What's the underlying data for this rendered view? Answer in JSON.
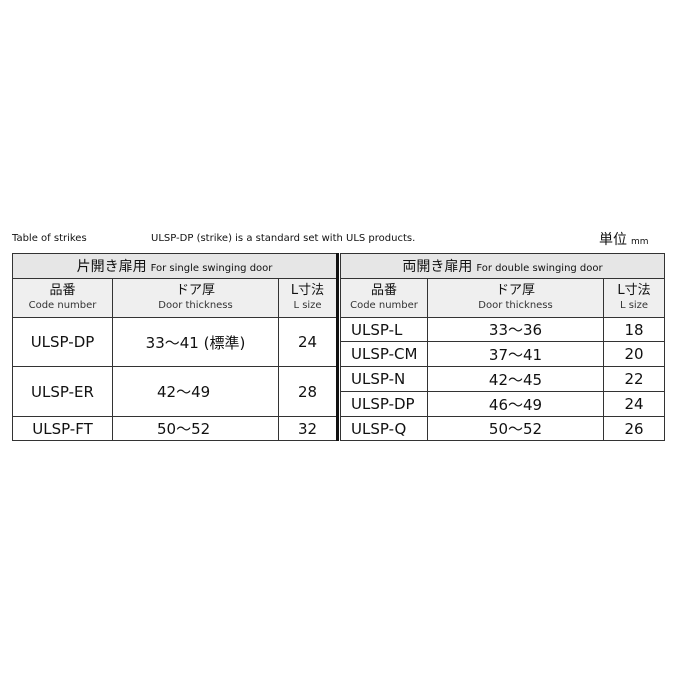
{
  "caption_left": "Table of strikes",
  "caption_center": "ULSP-DP (strike) is a standard set with ULS products.",
  "unit_label": "単位",
  "unit_value": "mm",
  "single": {
    "title_jp": "片開き扉用",
    "title_en": "For single swinging door",
    "headers": [
      {
        "jp": "品番",
        "en": "Code number"
      },
      {
        "jp": "ドア厚",
        "en": "Door thickness"
      },
      {
        "jp": "L寸法",
        "en": "L size"
      }
    ],
    "rows": [
      {
        "code": "ULSP-DP",
        "thickness": "33〜41 (標準)",
        "l": "24"
      },
      {
        "code": "ULSP-ER",
        "thickness": "42〜49",
        "l": "28"
      },
      {
        "code": "ULSP-FT",
        "thickness": "50〜52",
        "l": "32"
      }
    ]
  },
  "double": {
    "title_jp": "両開き扉用",
    "title_en": "For double swinging door",
    "headers": [
      {
        "jp": "品番",
        "en": "Code number"
      },
      {
        "jp": "ドア厚",
        "en": "Door thickness"
      },
      {
        "jp": "L寸法",
        "en": "L size"
      }
    ],
    "rows": [
      {
        "code": "ULSP-L",
        "thickness": "33〜36",
        "l": "18"
      },
      {
        "code": "ULSP-CM",
        "thickness": "37〜41",
        "l": "20"
      },
      {
        "code": "ULSP-N",
        "thickness": "42〜45",
        "l": "22"
      },
      {
        "code": "ULSP-DP",
        "thickness": "46〜49",
        "l": "24"
      },
      {
        "code": "ULSP-Q",
        "thickness": "50〜52",
        "l": "26"
      }
    ]
  }
}
